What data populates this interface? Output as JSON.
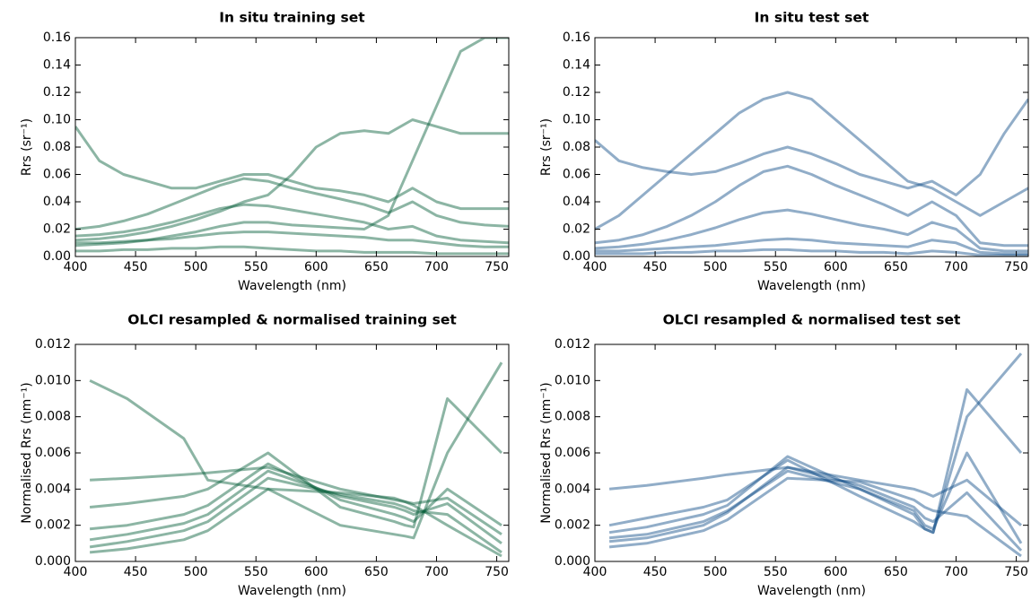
{
  "chart_data": [
    {
      "type": "line",
      "title": "In situ training set",
      "x_label": "Wavelength (nm)",
      "y_label": "Rrs (sr⁻¹)",
      "x": [
        400,
        420,
        440,
        460,
        480,
        500,
        520,
        540,
        560,
        580,
        600,
        620,
        640,
        660,
        680,
        700,
        720,
        740,
        760
      ],
      "xlim": [
        400,
        760
      ],
      "xticks": [
        400,
        450,
        500,
        550,
        600,
        650,
        700,
        750
      ],
      "ylim": [
        0,
        0.16
      ],
      "yticks": [
        {
          "value": 0,
          "label": "0.00"
        },
        {
          "value": 0.02,
          "label": "0.02"
        },
        {
          "value": 0.04,
          "label": "0.04"
        },
        {
          "value": 0.06,
          "label": "0.06"
        },
        {
          "value": 0.08,
          "label": "0.08"
        },
        {
          "value": 0.1,
          "label": "0.10"
        },
        {
          "value": 0.12,
          "label": "0.12"
        },
        {
          "value": 0.14,
          "label": "0.14"
        },
        {
          "value": 0.16,
          "label": "0.16"
        }
      ],
      "series": [
        {
          "color": "#005a36",
          "values": [
            0.01,
            0.01,
            0.011,
            0.012,
            0.013,
            0.015,
            0.017,
            0.018,
            0.018,
            0.017,
            0.016,
            0.015,
            0.014,
            0.012,
            0.012,
            0.01,
            0.008,
            0.007,
            0.007
          ]
        },
        {
          "color": "#005a36",
          "values": [
            0.015,
            0.016,
            0.018,
            0.021,
            0.025,
            0.03,
            0.035,
            0.038,
            0.037,
            0.034,
            0.031,
            0.028,
            0.025,
            0.02,
            0.022,
            0.015,
            0.012,
            0.011,
            0.01
          ]
        },
        {
          "color": "#005a36",
          "values": [
            0.02,
            0.022,
            0.026,
            0.031,
            0.038,
            0.045,
            0.052,
            0.057,
            0.055,
            0.05,
            0.046,
            0.042,
            0.038,
            0.032,
            0.04,
            0.03,
            0.025,
            0.023,
            0.022
          ]
        },
        {
          "color": "#005a36",
          "values": [
            0.004,
            0.004,
            0.005,
            0.005,
            0.006,
            0.006,
            0.007,
            0.007,
            0.006,
            0.005,
            0.004,
            0.004,
            0.003,
            0.003,
            0.003,
            0.002,
            0.002,
            0.002,
            0.002
          ]
        },
        {
          "color": "#005a36",
          "values": [
            0.008,
            0.009,
            0.01,
            0.012,
            0.015,
            0.018,
            0.022,
            0.025,
            0.025,
            0.023,
            0.022,
            0.021,
            0.02,
            0.03,
            0.07,
            0.11,
            0.15,
            0.16,
            0.16
          ]
        },
        {
          "color": "#005a36",
          "values": [
            0.095,
            0.07,
            0.06,
            0.055,
            0.05,
            0.05,
            0.055,
            0.06,
            0.06,
            0.055,
            0.05,
            0.048,
            0.045,
            0.04,
            0.05,
            0.04,
            0.035,
            0.035,
            0.035
          ]
        },
        {
          "color": "#005a36",
          "values": [
            0.012,
            0.013,
            0.015,
            0.018,
            0.022,
            0.027,
            0.033,
            0.04,
            0.045,
            0.06,
            0.08,
            0.09,
            0.092,
            0.09,
            0.1,
            0.095,
            0.09,
            0.09,
            0.09
          ]
        }
      ]
    },
    {
      "type": "line",
      "title": "In situ test set",
      "x_label": "Wavelength (nm)",
      "y_label": "Rrs (sr⁻¹)",
      "x": [
        400,
        420,
        440,
        460,
        480,
        500,
        520,
        540,
        560,
        580,
        600,
        620,
        640,
        660,
        680,
        700,
        720,
        740,
        760
      ],
      "xlim": [
        400,
        760
      ],
      "xticks": [
        400,
        450,
        500,
        550,
        600,
        650,
        700,
        750
      ],
      "ylim": [
        0,
        0.16
      ],
      "yticks": [
        {
          "value": 0,
          "label": "0.00"
        },
        {
          "value": 0.02,
          "label": "0.02"
        },
        {
          "value": 0.04,
          "label": "0.04"
        },
        {
          "value": 0.06,
          "label": "0.06"
        },
        {
          "value": 0.08,
          "label": "0.08"
        },
        {
          "value": 0.1,
          "label": "0.10"
        },
        {
          "value": 0.12,
          "label": "0.12"
        },
        {
          "value": 0.14,
          "label": "0.14"
        },
        {
          "value": 0.16,
          "label": "0.16"
        }
      ],
      "series": [
        {
          "color": "#0b4a86",
          "values": [
            0.004,
            0.004,
            0.005,
            0.006,
            0.007,
            0.008,
            0.01,
            0.012,
            0.013,
            0.012,
            0.01,
            0.009,
            0.008,
            0.007,
            0.012,
            0.01,
            0.003,
            0.002,
            0.002
          ]
        },
        {
          "color": "#0b4a86",
          "values": [
            0.006,
            0.007,
            0.009,
            0.012,
            0.016,
            0.021,
            0.027,
            0.032,
            0.034,
            0.031,
            0.027,
            0.023,
            0.02,
            0.016,
            0.025,
            0.02,
            0.006,
            0.004,
            0.004
          ]
        },
        {
          "color": "#0b4a86",
          "values": [
            0.01,
            0.012,
            0.016,
            0.022,
            0.03,
            0.04,
            0.052,
            0.062,
            0.066,
            0.06,
            0.052,
            0.045,
            0.038,
            0.03,
            0.04,
            0.03,
            0.01,
            0.008,
            0.008
          ]
        },
        {
          "color": "#0b4a86",
          "values": [
            0.002,
            0.002,
            0.002,
            0.003,
            0.003,
            0.004,
            0.004,
            0.005,
            0.005,
            0.004,
            0.004,
            0.003,
            0.003,
            0.002,
            0.004,
            0.003,
            0.001,
            0.001,
            0.001
          ]
        },
        {
          "color": "#0b4a86",
          "values": [
            0.02,
            0.03,
            0.045,
            0.06,
            0.075,
            0.09,
            0.105,
            0.115,
            0.12,
            0.115,
            0.1,
            0.085,
            0.07,
            0.055,
            0.05,
            0.04,
            0.03,
            0.04,
            0.05
          ]
        },
        {
          "color": "#0b4a86",
          "values": [
            0.085,
            0.07,
            0.065,
            0.062,
            0.06,
            0.062,
            0.068,
            0.075,
            0.08,
            0.075,
            0.068,
            0.06,
            0.055,
            0.05,
            0.055,
            0.045,
            0.06,
            0.09,
            0.115
          ]
        }
      ]
    },
    {
      "type": "line",
      "title": "OLCI resampled & normalised training set",
      "x_label": "Wavelength (nm)",
      "y_label": "Normalised Rrs (nm⁻¹)",
      "x": [
        412,
        443,
        490,
        510,
        560,
        620,
        665,
        674,
        681,
        709,
        754
      ],
      "xlim": [
        400,
        760
      ],
      "xticks": [
        400,
        450,
        500,
        550,
        600,
        650,
        700,
        750
      ],
      "ylim": [
        0,
        0.012
      ],
      "yticks": [
        {
          "value": 0,
          "label": "0.000"
        },
        {
          "value": 0.002,
          "label": "0.002"
        },
        {
          "value": 0.004,
          "label": "0.004"
        },
        {
          "value": 0.006,
          "label": "0.006"
        },
        {
          "value": 0.008,
          "label": "0.008"
        },
        {
          "value": 0.01,
          "label": "0.010"
        },
        {
          "value": 0.012,
          "label": "0.012"
        }
      ],
      "series": [
        {
          "color": "#005a36",
          "values": [
            0.0012,
            0.0015,
            0.0021,
            0.0026,
            0.005,
            0.0036,
            0.003,
            0.0028,
            0.0026,
            0.0032,
            0.001
          ]
        },
        {
          "color": "#005a36",
          "values": [
            0.0008,
            0.0011,
            0.0017,
            0.0022,
            0.0046,
            0.0037,
            0.0032,
            0.003,
            0.0028,
            0.0026,
            0.0005
          ]
        },
        {
          "color": "#005a36",
          "values": [
            0.0018,
            0.002,
            0.0026,
            0.0031,
            0.0054,
            0.0034,
            0.0026,
            0.0024,
            0.0022,
            0.004,
            0.002
          ]
        },
        {
          "color": "#005a36",
          "values": [
            0.0005,
            0.0007,
            0.0012,
            0.0017,
            0.004,
            0.0038,
            0.0035,
            0.0033,
            0.0031,
            0.002,
            0.0003
          ]
        },
        {
          "color": "#005a36",
          "values": [
            0.003,
            0.0032,
            0.0036,
            0.004,
            0.006,
            0.003,
            0.0022,
            0.002,
            0.0019,
            0.009,
            0.006
          ]
        },
        {
          "color": "#005a36",
          "values": [
            0.01,
            0.009,
            0.0068,
            0.0045,
            0.004,
            0.002,
            0.0015,
            0.0014,
            0.0013,
            0.006,
            0.011
          ]
        },
        {
          "color": "#005a36",
          "values": [
            0.0045,
            0.0046,
            0.0048,
            0.0049,
            0.0052,
            0.004,
            0.0034,
            0.0033,
            0.0032,
            0.0035,
            0.0015
          ]
        }
      ]
    },
    {
      "type": "line",
      "title": "OLCI resampled & normalised test set",
      "x_label": "Wavelength (nm)",
      "y_label": "Normalised Rrs (nm⁻¹)",
      "x": [
        412,
        443,
        490,
        510,
        560,
        620,
        665,
        674,
        681,
        709,
        754
      ],
      "xlim": [
        400,
        760
      ],
      "xticks": [
        400,
        450,
        500,
        550,
        600,
        650,
        700,
        750
      ],
      "ylim": [
        0,
        0.012
      ],
      "yticks": [
        {
          "value": 0,
          "label": "0.000"
        },
        {
          "value": 0.002,
          "label": "0.002"
        },
        {
          "value": 0.004,
          "label": "0.004"
        },
        {
          "value": 0.006,
          "label": "0.006"
        },
        {
          "value": 0.008,
          "label": "0.008"
        },
        {
          "value": 0.01,
          "label": "0.010"
        },
        {
          "value": 0.012,
          "label": "0.012"
        }
      ],
      "series": [
        {
          "color": "#0b4a86",
          "values": [
            0.0011,
            0.0013,
            0.002,
            0.0027,
            0.0052,
            0.0042,
            0.003,
            0.0024,
            0.0022,
            0.0038,
            0.0006
          ]
        },
        {
          "color": "#0b4a86",
          "values": [
            0.0013,
            0.0015,
            0.0022,
            0.0028,
            0.005,
            0.004,
            0.0028,
            0.002,
            0.0018,
            0.006,
            0.001
          ]
        },
        {
          "color": "#0b4a86",
          "values": [
            0.0008,
            0.001,
            0.0017,
            0.0023,
            0.0046,
            0.0044,
            0.0034,
            0.003,
            0.0028,
            0.0025,
            0.0003
          ]
        },
        {
          "color": "#0b4a86",
          "values": [
            0.0016,
            0.0019,
            0.0026,
            0.0031,
            0.0058,
            0.004,
            0.0026,
            0.0018,
            0.0016,
            0.0095,
            0.006
          ]
        },
        {
          "color": "#0b4a86",
          "values": [
            0.004,
            0.0042,
            0.0046,
            0.0048,
            0.0052,
            0.0045,
            0.004,
            0.0038,
            0.0036,
            0.0045,
            0.002
          ]
        },
        {
          "color": "#0b4a86",
          "values": [
            0.002,
            0.0024,
            0.003,
            0.0034,
            0.0056,
            0.0036,
            0.0022,
            0.0018,
            0.0016,
            0.008,
            0.0115
          ]
        }
      ]
    }
  ]
}
